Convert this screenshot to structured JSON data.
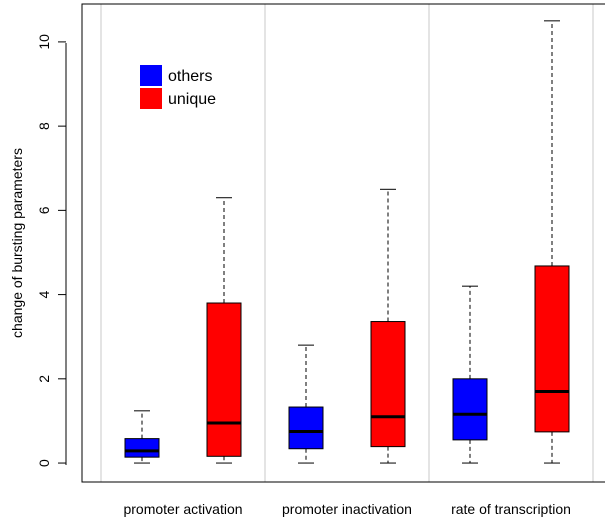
{
  "chart_data": {
    "type": "box",
    "title": "",
    "xlabel": "",
    "ylabel": "change of bursting parameters",
    "ylim": [
      -0.45,
      10.9
    ],
    "yticks": [
      0,
      2,
      4,
      6,
      8,
      10
    ],
    "categories": [
      "promoter activation",
      "promoter inactivation",
      "rate of transcription"
    ],
    "legend_position": "top-left",
    "grid": false,
    "series": [
      {
        "name": "others",
        "color": "#0000FF",
        "boxes": [
          {
            "whisker_low": 0,
            "q1": 0.14,
            "median": 0.29,
            "q3": 0.58,
            "whisker_high": 1.24
          },
          {
            "whisker_low": 0,
            "q1": 0.34,
            "median": 0.75,
            "q3": 1.33,
            "whisker_high": 2.8
          },
          {
            "whisker_low": 0,
            "q1": 0.55,
            "median": 1.16,
            "q3": 2.0,
            "whisker_high": 4.2
          }
        ]
      },
      {
        "name": "unique",
        "color": "#FF0000",
        "boxes": [
          {
            "whisker_low": 0,
            "q1": 0.16,
            "median": 0.95,
            "q3": 3.8,
            "whisker_high": 6.3
          },
          {
            "whisker_low": 0,
            "q1": 0.39,
            "median": 1.1,
            "q3": 3.36,
            "whisker_high": 6.5
          },
          {
            "whisker_low": 0,
            "q1": 0.74,
            "median": 1.7,
            "q3": 4.68,
            "whisker_high": 10.5
          }
        ]
      }
    ]
  }
}
